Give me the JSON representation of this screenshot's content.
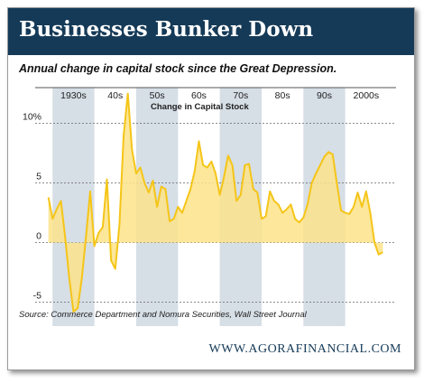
{
  "header": {
    "title": "Businesses Bunker Down",
    "subtitle": "Annual change in capital stock since the Great Depression.",
    "source": "Source: Commerce Department and Nomura Securities, Wall Street Journal",
    "website": "WWW.AGORAFINANCIAL.COM"
  },
  "colors": {
    "header_bg": "#153a57",
    "area_fill": "#fbe38a",
    "line": "#f5c518",
    "decade_band": "#d6dee6",
    "grid": "#666666"
  },
  "chart_data": {
    "type": "area",
    "title": "Change in Capital Stock",
    "xlabel": "",
    "ylabel": "",
    "xlim": [
      1928,
      2010
    ],
    "ylim": [
      -7,
      13
    ],
    "grid": true,
    "x_tick_labels": [
      {
        "x": 1935,
        "label": "1930s"
      },
      {
        "x": 1945,
        "label": "40s"
      },
      {
        "x": 1955,
        "label": "50s"
      },
      {
        "x": 1965,
        "label": "60s"
      },
      {
        "x": 1975,
        "label": "70s"
      },
      {
        "x": 1985,
        "label": "80s"
      },
      {
        "x": 1995,
        "label": "90s"
      },
      {
        "x": 2005,
        "label": "2000s"
      }
    ],
    "y_ticks": [
      {
        "value": 10,
        "label": "10%"
      },
      {
        "value": 5,
        "label": "5"
      },
      {
        "value": 0,
        "label": "0"
      },
      {
        "value": -5,
        "label": "-5"
      }
    ],
    "shaded_decades": [
      [
        1930,
        1940
      ],
      [
        1950,
        1960
      ],
      [
        1970,
        1980
      ],
      [
        1990,
        2000
      ]
    ],
    "series": [
      {
        "x": [
          1929,
          1930,
          1931,
          1932,
          1933,
          1934,
          1935,
          1936,
          1937,
          1938,
          1939,
          1940,
          1941,
          1942,
          1943,
          1944,
          1945,
          1946,
          1947,
          1948,
          1949,
          1950,
          1951,
          1952,
          1953,
          1954,
          1955,
          1956,
          1957,
          1958,
          1959,
          1960,
          1961,
          1962,
          1963,
          1964,
          1965,
          1966,
          1967,
          1968,
          1969,
          1970,
          1971,
          1972,
          1973,
          1974,
          1975,
          1976,
          1977,
          1978,
          1979,
          1980,
          1981,
          1982,
          1983,
          1984,
          1985,
          1986,
          1987,
          1988,
          1989,
          1990,
          1991,
          1992,
          1993,
          1994,
          1995,
          1996,
          1997,
          1998,
          1999,
          2000,
          2001,
          2002,
          2003,
          2004,
          2005,
          2006,
          2007,
          2008,
          2009
        ],
        "values": [
          3.8,
          2.0,
          2.8,
          3.5,
          0.5,
          -3.0,
          -5.8,
          -5.5,
          -3.0,
          0.5,
          4.3,
          -0.3,
          0.8,
          1.3,
          5.3,
          -1.5,
          -2.2,
          1.5,
          9.0,
          12.5,
          7.8,
          5.8,
          6.3,
          5.0,
          4.2,
          5.2,
          3.0,
          4.7,
          4.5,
          1.8,
          2.0,
          3.0,
          2.5,
          3.5,
          4.5,
          6.0,
          8.5,
          6.5,
          6.3,
          6.8,
          5.8,
          4.0,
          5.5,
          7.3,
          6.5,
          3.5,
          4.0,
          6.5,
          6.6,
          4.5,
          4.2,
          2.0,
          2.2,
          4.3,
          3.5,
          3.2,
          2.5,
          2.8,
          3.2,
          2.0,
          1.7,
          2.1,
          3.2,
          5.0,
          5.8,
          6.5,
          7.2,
          7.6,
          7.4,
          5.0,
          2.7,
          2.5,
          2.4,
          3.0,
          4.2,
          3.0,
          4.3,
          2.5,
          0.0,
          -1.0,
          -0.8
        ]
      }
    ]
  }
}
